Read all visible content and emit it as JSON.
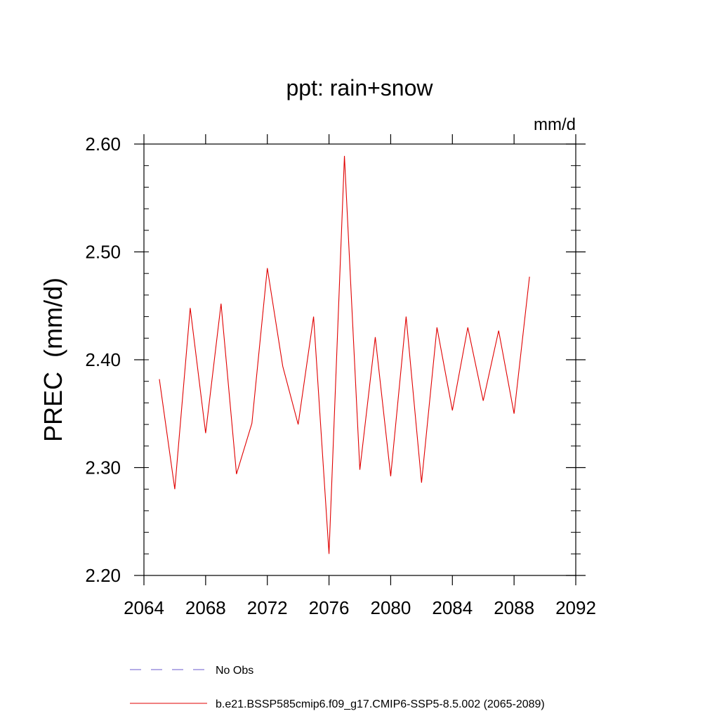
{
  "chart_data": {
    "type": "line",
    "title": "ppt: rain+snow",
    "units_label": "mm/d",
    "xlabel": "",
    "ylabel": "PREC  (mm/d)",
    "xlim": [
      2064,
      2092
    ],
    "ylim": [
      2.2,
      2.6
    ],
    "x_ticks": [
      2064,
      2068,
      2072,
      2076,
      2080,
      2084,
      2088,
      2092
    ],
    "x_tick_labels": [
      "2064",
      "2068",
      "2072",
      "2076",
      "2080",
      "2084",
      "2088",
      "2092"
    ],
    "y_ticks": [
      2.2,
      2.3,
      2.4,
      2.5,
      2.6
    ],
    "y_tick_labels": [
      "2.20",
      "2.30",
      "2.40",
      "2.50",
      "2.60"
    ],
    "grid": false,
    "legend_placement": "bottom",
    "series": [
      {
        "name": "No Obs",
        "style": "dashed",
        "color": "#6a5acd",
        "x": [],
        "y": []
      },
      {
        "name": "b.e21.BSSP585cmip6.f09_g17.CMIP6-SSP5-8.5.002 (2065-2089)",
        "style": "solid",
        "color": "#e00000",
        "x": [
          2065,
          2066,
          2067,
          2068,
          2069,
          2070,
          2071,
          2072,
          2073,
          2074,
          2075,
          2076,
          2077,
          2078,
          2079,
          2080,
          2081,
          2082,
          2083,
          2084,
          2085,
          2086,
          2087,
          2088,
          2089
        ],
        "y": [
          2.382,
          2.28,
          2.448,
          2.332,
          2.452,
          2.294,
          2.341,
          2.485,
          2.394,
          2.34,
          2.44,
          2.22,
          2.589,
          2.298,
          2.421,
          2.292,
          2.44,
          2.286,
          2.43,
          2.353,
          2.43,
          2.362,
          2.427,
          2.35,
          2.477
        ]
      }
    ]
  }
}
